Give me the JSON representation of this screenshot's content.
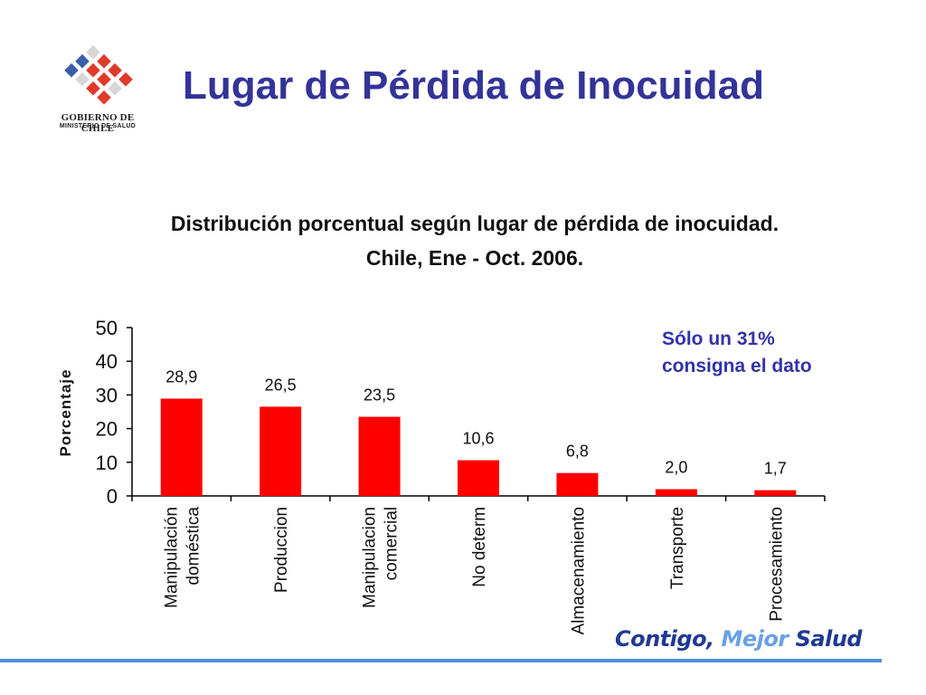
{
  "header": {
    "title": "Lugar de Pérdida de Inocuidad",
    "logo_line1": "GOBIERNO DE CHILE",
    "logo_line2": "MINISTERIO DE SALUD"
  },
  "note": {
    "line1": "Sólo un 31%",
    "line2": "consigna el dato"
  },
  "footer": {
    "part1": "Contigo,",
    "part2": "Mejor",
    "part3": "Salud"
  },
  "colors": {
    "title": "#333399",
    "bar": "#ff0000",
    "note": "#3333aa",
    "footer": "#1f3a93"
  },
  "chart_data": {
    "type": "bar",
    "title_line1": "Distribución porcentual según lugar de pérdida de inocuidad.",
    "title_line2": "Chile,  Ene - Oct. 2006.",
    "ylabel": "Porcentaje",
    "xlabel": "",
    "ylim": [
      0,
      50
    ],
    "yticks": [
      "0",
      "10",
      "20",
      "30",
      "40",
      "50"
    ],
    "categories": [
      [
        "Manipulación",
        "doméstica"
      ],
      [
        "Produccion"
      ],
      [
        "Manipulacion",
        "comercial"
      ],
      [
        "No determ"
      ],
      [
        "Almacenamiento"
      ],
      [
        "Transporte"
      ],
      [
        "Procesamiento"
      ]
    ],
    "values": [
      28.9,
      26.5,
      23.5,
      10.6,
      6.8,
      2.0,
      1.7
    ],
    "data_labels": [
      "28,9",
      "26,5",
      "23,5",
      "10,6",
      "6,8",
      "2,0",
      "1,7"
    ],
    "grid": false,
    "legend": "none"
  }
}
